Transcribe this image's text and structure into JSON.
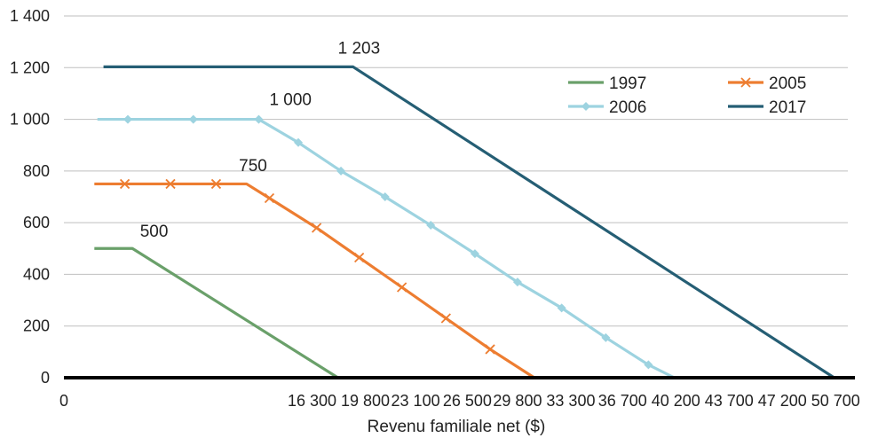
{
  "chart_data": {
    "type": "line",
    "xlabel": "Revenu familiale net ($)",
    "ylabel": "",
    "xlim": [
      0,
      51500
    ],
    "ylim": [
      0,
      1400
    ],
    "x_ticks": [
      {
        "value": 0,
        "label": "0"
      },
      {
        "value": 16300,
        "label": "16 300"
      },
      {
        "value": 19800,
        "label": "19 800"
      },
      {
        "value": 23100,
        "label": "23 100"
      },
      {
        "value": 26500,
        "label": "26 500"
      },
      {
        "value": 29800,
        "label": "29 800"
      },
      {
        "value": 33300,
        "label": "33 300"
      },
      {
        "value": 36700,
        "label": "36 700"
      },
      {
        "value": 40200,
        "label": "40 200"
      },
      {
        "value": 43700,
        "label": "43 700"
      },
      {
        "value": 47200,
        "label": "47 200"
      },
      {
        "value": 50700,
        "label": "50 700"
      }
    ],
    "y_ticks": [
      {
        "value": 0,
        "label": "0"
      },
      {
        "value": 200,
        "label": "200"
      },
      {
        "value": 400,
        "label": "400"
      },
      {
        "value": 600,
        "label": "600"
      },
      {
        "value": 800,
        "label": "800"
      },
      {
        "value": 1000,
        "label": "1 000"
      },
      {
        "value": 1200,
        "label": "1 200"
      },
      {
        "value": 1400,
        "label": "1 400"
      }
    ],
    "grid": "horizontal",
    "legend_position": "top-right",
    "series": [
      {
        "name": "1997",
        "color": "#6aa06a",
        "marker": "none",
        "x": [
          2000,
          4500,
          18000
        ],
        "y": [
          500,
          500,
          0
        ]
      },
      {
        "name": "2005",
        "color": "#ed7d31",
        "marker": "x",
        "x": [
          2000,
          4000,
          7000,
          10000,
          12000,
          13500,
          16600,
          19400,
          22200,
          25100,
          28000,
          30900,
          33200
        ],
        "y": [
          750,
          750,
          750,
          750,
          750,
          695,
          580,
          465,
          350,
          230,
          110,
          0,
          0
        ],
        "marker_x": [
          4000,
          7000,
          10000,
          13500,
          16600,
          19400,
          22200,
          25100,
          28000
        ],
        "marker_y": [
          750,
          750,
          750,
          695,
          580,
          465,
          350,
          230,
          110
        ]
      },
      {
        "name": "2006",
        "color": "#9dd3e0",
        "marker": "diamond",
        "x": [
          2200,
          4200,
          8500,
          12800,
          15400,
          18200,
          21100,
          24100,
          27000,
          29800,
          32700,
          35600,
          38400,
          40100
        ],
        "y": [
          1000,
          1000,
          1000,
          1000,
          910,
          800,
          700,
          590,
          480,
          370,
          270,
          155,
          50,
          0
        ],
        "marker_x": [
          4200,
          8500,
          12800,
          15400,
          18200,
          21100,
          24100,
          27000,
          29800,
          32700,
          35600,
          38400
        ],
        "marker_y": [
          1000,
          1000,
          1000,
          910,
          800,
          700,
          590,
          480,
          370,
          270,
          155,
          50
        ]
      },
      {
        "name": "2017",
        "color": "#255e74",
        "marker": "none",
        "x": [
          2600,
          19000,
          50600
        ],
        "y": [
          1203,
          1203,
          0
        ]
      }
    ],
    "annotations": [
      {
        "text": "500",
        "x": 5000,
        "y": 545
      },
      {
        "text": "750",
        "x": 11500,
        "y": 800
      },
      {
        "text": "1 000",
        "x": 13500,
        "y": 1055
      },
      {
        "text": "1 203",
        "x": 18000,
        "y": 1255
      }
    ]
  }
}
